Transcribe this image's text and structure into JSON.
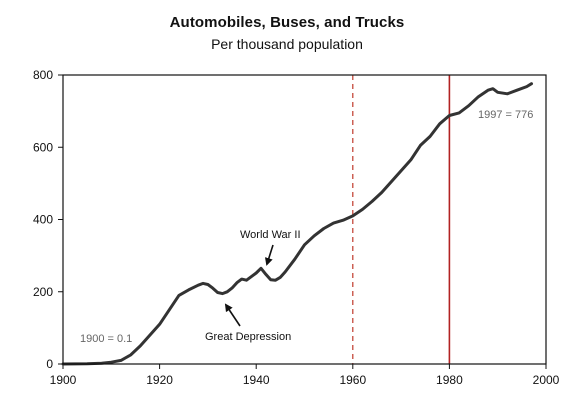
{
  "chart_data": {
    "type": "line",
    "title": "Automobiles, Buses, and Trucks",
    "subtitle": "Per thousand population",
    "xlim": [
      1900,
      2000
    ],
    "ylim": [
      0,
      800
    ],
    "xticks": [
      "1900",
      "1920",
      "1940",
      "1960",
      "1980",
      "2000"
    ],
    "yticks": [
      "0",
      "200",
      "400",
      "600",
      "800"
    ],
    "grid": false,
    "series": [
      {
        "x": [
          1900,
          1905,
          1908,
          1910,
          1912,
          1914,
          1916,
          1918,
          1920,
          1922,
          1924,
          1926,
          1928,
          1929,
          1930,
          1931,
          1932,
          1933,
          1934,
          1935,
          1936,
          1937,
          1938,
          1939,
          1940,
          1941,
          1942,
          1943,
          1944,
          1945,
          1946,
          1948,
          1950,
          1952,
          1954,
          1956,
          1958,
          1960,
          1962,
          1964,
          1966,
          1968,
          1970,
          1972,
          1974,
          1976,
          1978,
          1980,
          1982,
          1984,
          1986,
          1988,
          1989,
          1990,
          1992,
          1994,
          1996,
          1997
        ],
        "y": [
          0.1,
          0.5,
          2,
          5,
          10,
          25,
          50,
          80,
          110,
          150,
          190,
          205,
          218,
          223,
          220,
          210,
          198,
          195,
          200,
          210,
          225,
          235,
          232,
          242,
          252,
          265,
          248,
          233,
          232,
          240,
          255,
          290,
          330,
          355,
          375,
          390,
          398,
          410,
          428,
          450,
          475,
          505,
          535,
          565,
          605,
          630,
          665,
          688,
          695,
          715,
          740,
          758,
          762,
          752,
          748,
          758,
          768,
          776
        ],
        "color": "#333333"
      }
    ],
    "reference_lines": [
      {
        "x": 1960,
        "style": "dashed",
        "color": "#c0392b"
      },
      {
        "x": 1980,
        "style": "solid",
        "color": "#b22222"
      }
    ],
    "annotations": {
      "start_label": "1900 = 0.1",
      "end_label": "1997 = 776",
      "ww2_label": "World War II",
      "depression_label": "Great Depression"
    }
  }
}
